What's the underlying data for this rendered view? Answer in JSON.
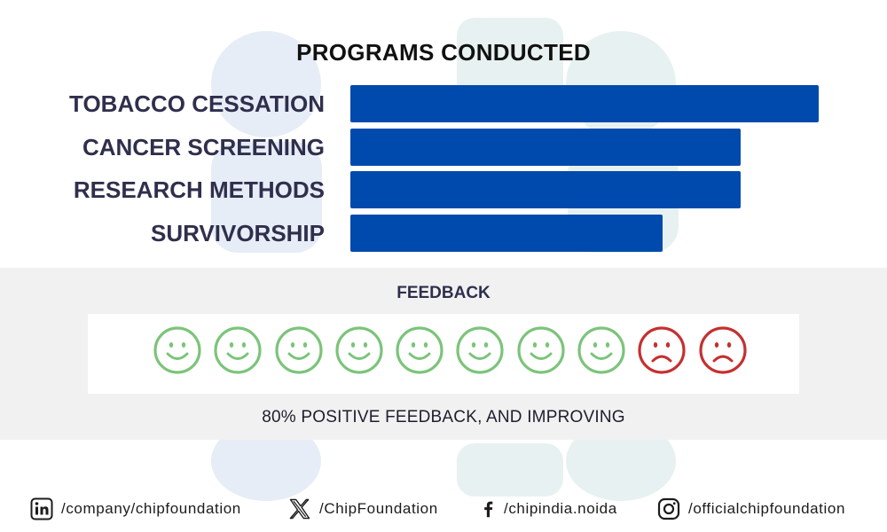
{
  "chart_data": {
    "type": "bar",
    "orientation": "horizontal",
    "title": "PROGRAMS CONDUCTED",
    "categories": [
      "TOBACCO CESSATION",
      "CANCER SCREENING",
      "RESEARCH METHODS",
      "SURVIVORSHIP"
    ],
    "values": [
      6,
      5,
      5,
      4
    ],
    "xlim": [
      0,
      6
    ],
    "bar_color": "#004AAD",
    "axes_shown": false,
    "grid": false,
    "legend": "none"
  },
  "feedback": {
    "title": "FEEDBACK",
    "faces": [
      "happy",
      "happy",
      "happy",
      "happy",
      "happy",
      "happy",
      "happy",
      "happy",
      "sad",
      "sad"
    ],
    "positive_color": "#7BC47A",
    "negative_color": "#C53030",
    "caption": "80% POSITIVE FEEDBACK, AND IMPROVING"
  },
  "footer": {
    "linkedin": {
      "icon": "linkedin-icon",
      "handle": "/company/chipfoundation"
    },
    "x": {
      "icon": "x-logo-icon",
      "handle": "/ChipFoundation"
    },
    "facebook": {
      "icon": "facebook-icon",
      "handle": "/chipindia.noida"
    },
    "instagram": {
      "icon": "instagram-icon",
      "handle": "/officialchipfoundation"
    }
  }
}
